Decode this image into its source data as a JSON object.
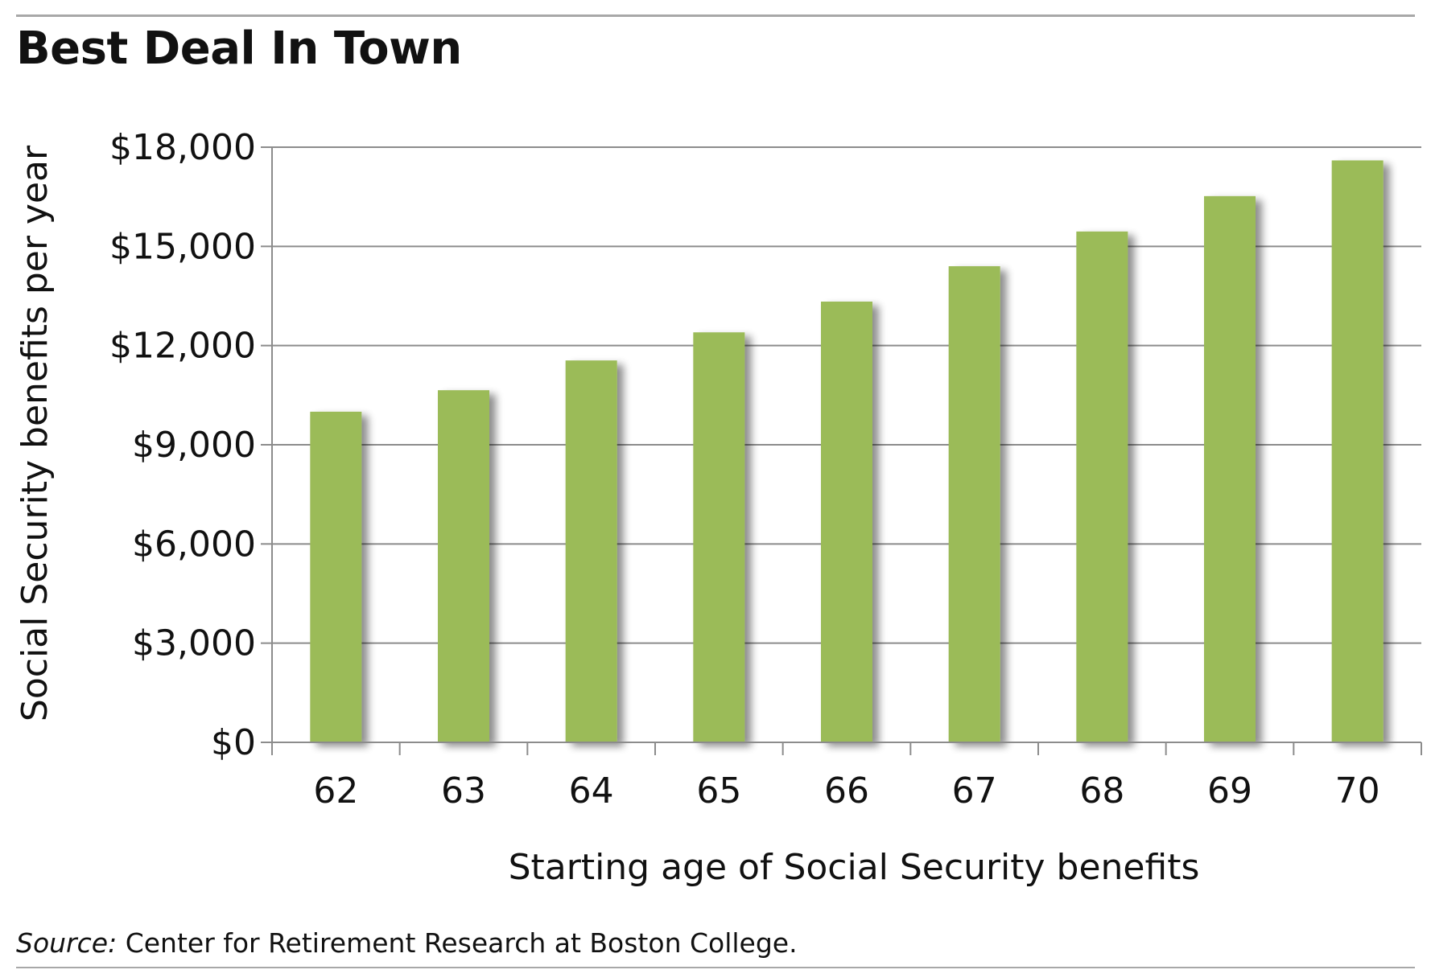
{
  "chart_data": {
    "type": "bar",
    "title": "Best Deal In Town",
    "xlabel": "Starting age of Social Security benefits",
    "ylabel": "Social Security benefits per year",
    "categories": [
      "62",
      "63",
      "64",
      "65",
      "66",
      "67",
      "68",
      "69",
      "70"
    ],
    "values": [
      10000,
      10650,
      11550,
      12400,
      13330,
      14400,
      15450,
      16520,
      17600
    ],
    "ylim": [
      0,
      18000
    ],
    "y_ticks": [
      {
        "value": 0,
        "label": "$0"
      },
      {
        "value": 3000,
        "label": "$3,000"
      },
      {
        "value": 6000,
        "label": "$6,000"
      },
      {
        "value": 9000,
        "label": "$9,000"
      },
      {
        "value": 12000,
        "label": "$12,000"
      },
      {
        "value": 15000,
        "label": "$15,000"
      },
      {
        "value": 18000,
        "label": "$18,000"
      }
    ],
    "grid": true,
    "legend": "none",
    "bar_color": "#9bbb59"
  },
  "source": {
    "lead": "Source:",
    "text": "Center for Retirement Research at Boston College."
  }
}
